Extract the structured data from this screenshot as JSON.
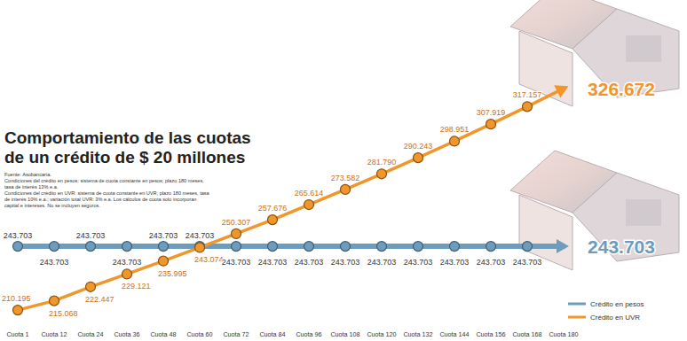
{
  "chart_data": {
    "type": "line",
    "title": "Comportamiento de las cuotas\nde un crédito de $ 20 millones",
    "annotations": [
      "Fuente: Asobancaria.",
      "Condiciones del crédito en pesos: sistema de cuota constante en pesos; plazo 180 meses, tasa de interés 13% e.a.",
      "Condiciones del crédito en UVR: sistema de cuota constante en UVR; plazo 180 meses, tasa de interés 10% e.a.; variación total UVR: 3% e.a. Los cálculos de cuota solo incorporan capital e intereses. No se incluyen seguros."
    ],
    "categories": [
      "Cuota 1",
      "Cuota 12",
      "Cuota 24",
      "Cuota 36",
      "Cuota 48",
      "Cuota 60",
      "Cuota 72",
      "Cuota 84",
      "Cuota 96",
      "Cuota 108",
      "Cuota 120",
      "Cuota 132",
      "Cuota 144",
      "Cuota 156",
      "Cuota 168",
      "Cuota 180"
    ],
    "series": [
      {
        "name": "Crédito en pesos",
        "color": "#6e9cbd",
        "marker": "circle",
        "values": [
          243703,
          243703,
          243703,
          243703,
          243703,
          243703,
          243703,
          243703,
          243703,
          243703,
          243703,
          243703,
          243703,
          243703,
          243703,
          243703
        ],
        "value_labels": [
          "243.703",
          "243.703",
          "243.703",
          "243.703",
          "243.703",
          "243.703",
          "243.703",
          "243.703",
          "243.703",
          "243.703",
          "243.703",
          "243.703",
          "243.703",
          "243.703",
          "243.703",
          "243.703"
        ]
      },
      {
        "name": "Crédito en UVR",
        "color": "#f0962a",
        "marker": "circle",
        "values": [
          210195,
          215068,
          222447,
          229121,
          235995,
          243074,
          250307,
          257676,
          265614,
          273582,
          281790,
          290243,
          298951,
          307919,
          317157,
          326672
        ],
        "value_labels": [
          "210.195",
          "215.068",
          "222.447",
          "229.121",
          "235.995",
          "243.074",
          "250.307",
          "257.676",
          "265.614",
          "273.582",
          "281.790",
          "290.243",
          "298.951",
          "307.919",
          "317.157",
          "326.672"
        ]
      }
    ],
    "ylim": [
      200000,
      335000
    ],
    "tick_labels": "x",
    "data_labels": true,
    "legend": "lower right",
    "grid": false
  }
}
